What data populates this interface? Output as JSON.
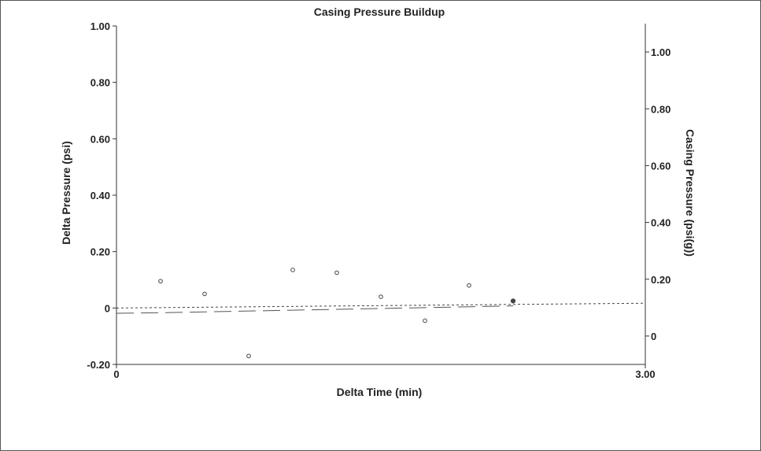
{
  "chart_data": {
    "type": "scatter",
    "title": "Casing Pressure Buildup",
    "xlabel": "Delta Time (min)",
    "ylabel": "Delta Pressure (psi)",
    "y2label": "Casing Pressure (psi(g))",
    "xlim": [
      0,
      3.0
    ],
    "ylim": [
      -0.2,
      1.0
    ],
    "y2lim": [
      -0.1,
      1.1
    ],
    "x_ticks": [
      {
        "value": 0,
        "label": "0"
      },
      {
        "value": 3.0,
        "label": "3.00"
      }
    ],
    "y_ticks": [
      {
        "value": 1.0,
        "label": "1.00"
      },
      {
        "value": 0.8,
        "label": "0.80"
      },
      {
        "value": 0.6,
        "label": "0.60"
      },
      {
        "value": 0.4,
        "label": "0.40"
      },
      {
        "value": 0.2,
        "label": "0.20"
      },
      {
        "value": 0,
        "label": "0"
      },
      {
        "value": -0.2,
        "label": "-0.20"
      }
    ],
    "y2_ticks": [
      {
        "value": 1.0,
        "label": "1.00"
      },
      {
        "value": 0.8,
        "label": "0.80"
      },
      {
        "value": 0.6,
        "label": "0.60"
      },
      {
        "value": 0.4,
        "label": "0.40"
      },
      {
        "value": 0.2,
        "label": "0.20"
      },
      {
        "value": 0,
        "label": "0"
      }
    ],
    "grid": false,
    "series": [
      {
        "axis": "left",
        "marker": "open-circle",
        "x": [
          0.25,
          0.5,
          0.75,
          1.0,
          1.25,
          1.5,
          1.75,
          2.0,
          2.25
        ],
        "y": [
          0.095,
          0.05,
          -0.17,
          0.135,
          0.125,
          0.04,
          -0.045,
          0.08,
          0.025
        ]
      },
      {
        "axis": "right",
        "style": "long-dash",
        "x": [
          0,
          0.25,
          0.5,
          0.75,
          1.0,
          1.25,
          1.5,
          1.75,
          2.0,
          2.25
        ],
        "y": [
          0.08,
          0.082,
          0.085,
          0.088,
          0.091,
          0.094,
          0.097,
          0.1,
          0.103,
          0.106
        ]
      },
      {
        "axis": "left",
        "style": "short-dash",
        "x": [
          0,
          3.0
        ],
        "y": [
          0,
          0.017
        ]
      }
    ],
    "colors": {
      "axis": "#333333",
      "marker": "#444444",
      "frame": "#555555"
    }
  }
}
